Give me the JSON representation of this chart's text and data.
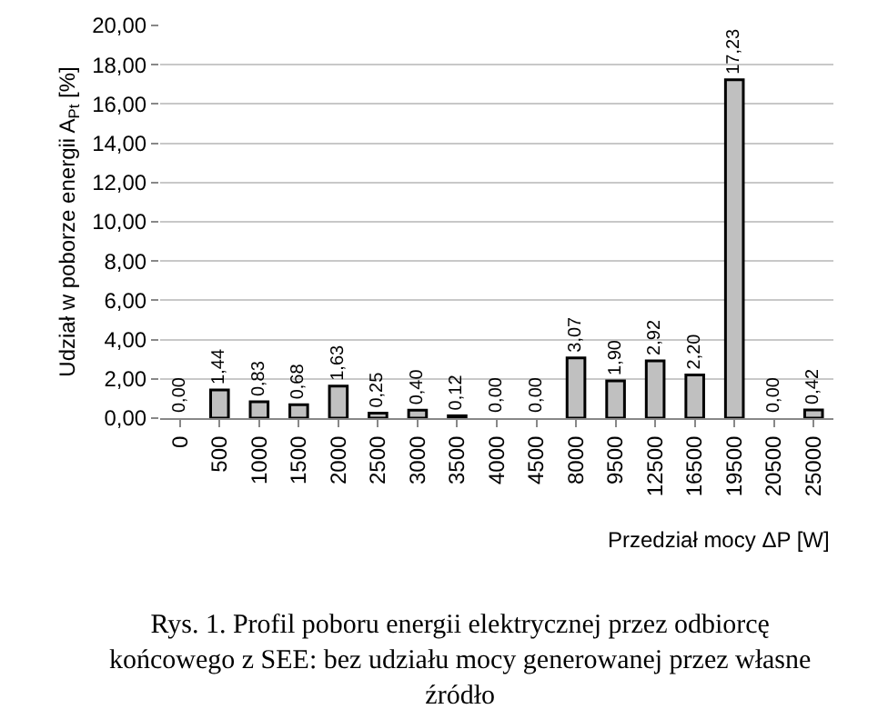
{
  "chart_data": {
    "type": "bar",
    "xlabel": "Przedział mocy ΔP [W]",
    "ylabel": "Udział w poborze energii A$_{Pt}$ [%]",
    "categories": [
      "0",
      "500",
      "1000",
      "1500",
      "2000",
      "2500",
      "3000",
      "3500",
      "4000",
      "4500",
      "8000",
      "9500",
      "12500",
      "16500",
      "19500",
      "20500",
      "25000"
    ],
    "values": [
      0,
      1.44,
      0.83,
      0.68,
      1.63,
      0.25,
      0.4,
      0.12,
      0,
      0,
      3.07,
      1.9,
      2.92,
      2.2,
      17.23,
      0,
      0.42
    ],
    "value_labels": [
      "0,00",
      "1,44",
      "0,83",
      "0,68",
      "1,63",
      "0,25",
      "0,40",
      "0,12",
      "0,00",
      "0,00",
      "3,07",
      "1,90",
      "2,92",
      "2,20",
      "17,23",
      "0,00",
      "0,42"
    ],
    "color": "#c0c0c0",
    "ylim": [
      0,
      20
    ],
    "yticks": [
      {
        "value": 0,
        "label": "0,00"
      },
      {
        "value": 2,
        "label": "2,00"
      },
      {
        "value": 4,
        "label": "4,00"
      },
      {
        "value": 6,
        "label": "6,00"
      },
      {
        "value": 8,
        "label": "8,00"
      },
      {
        "value": 10,
        "label": "10,00"
      },
      {
        "value": 12,
        "label": "12,00"
      },
      {
        "value": 14,
        "label": "14,00"
      },
      {
        "value": 16,
        "label": "16,00"
      },
      {
        "value": 18,
        "label": "18,00"
      },
      {
        "value": 20,
        "label": "20,00"
      }
    ],
    "grid": "y",
    "annotations": [
      "Rys. 1. Profil poboru energii elektrycznej przez odbiorcę końcowego z SEE: bez udziału mocy generowanej przez własne źródło"
    ]
  }
}
